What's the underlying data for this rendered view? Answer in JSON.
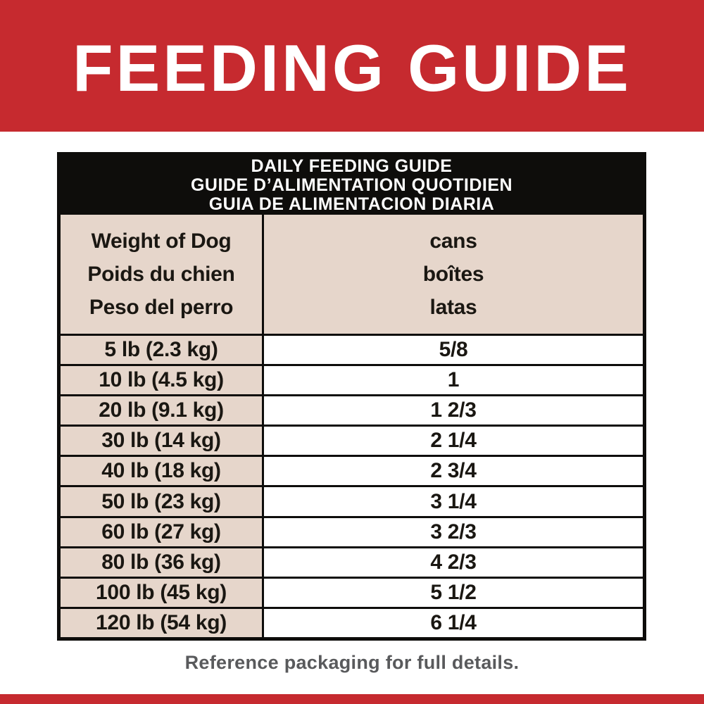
{
  "banner": {
    "title": "FEEDING GUIDE"
  },
  "table": {
    "title_lines": [
      "DAILY FEEDING GUIDE",
      "GUIDE D’ALIMENTATION QUOTIDIEN",
      "GUIA DE ALIMENTACION DIARIA"
    ],
    "columns": [
      {
        "header_lines": [
          "Weight of Dog",
          "Poids du chien",
          "Peso del perro"
        ]
      },
      {
        "header_lines": [
          "cans",
          "boîtes",
          "latas"
        ]
      }
    ],
    "rows": [
      {
        "weight": "5 lb (2.3 kg)",
        "cans": "5/8"
      },
      {
        "weight": "10 lb (4.5 kg)",
        "cans": "1"
      },
      {
        "weight": "20 lb (9.1 kg)",
        "cans": "1 2/3"
      },
      {
        "weight": "30 lb (14 kg)",
        "cans": "2 1/4"
      },
      {
        "weight": "40 lb (18 kg)",
        "cans": "2 3/4"
      },
      {
        "weight": "50 lb (23 kg)",
        "cans": "3 1/4"
      },
      {
        "weight": "60 lb (27 kg)",
        "cans": "3 2/3"
      },
      {
        "weight": "80 lb (36 kg)",
        "cans": "4 2/3"
      },
      {
        "weight": "100 lb (45 kg)",
        "cans": "5 1/2"
      },
      {
        "weight": "120 lb (54 kg)",
        "cans": "6 1/4"
      }
    ]
  },
  "footer": {
    "note": "Reference packaging for full details."
  },
  "colors": {
    "brand_red": "#c62a2f",
    "table_header_black": "#0e0d0b",
    "table_beige": "#e6d6cb",
    "footnote_gray": "#595a5c"
  }
}
